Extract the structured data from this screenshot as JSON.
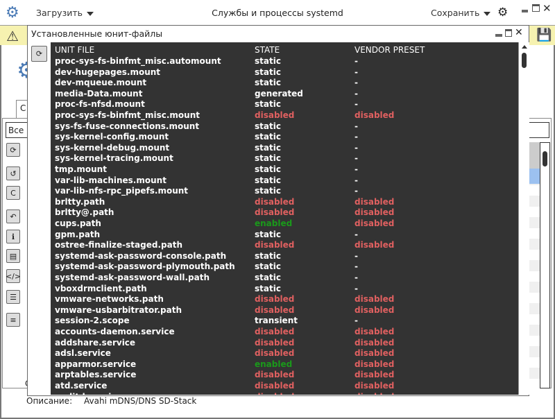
{
  "window": {
    "title": "Службы и процессы systemd",
    "load_menu": "Загрузить",
    "save_menu": "Сохранить"
  },
  "background": {
    "tab_label": "С",
    "filter_value": "Все",
    "description_label": "Описание:",
    "description_value": "Avahi mDNS/DNS SD-Stack",
    "partial_label": "С"
  },
  "dialog": {
    "title": "Установленные юнит-файлы",
    "columns": [
      "UNIT FILE",
      "STATE",
      "VENDOR PRESET"
    ],
    "rows": [
      [
        "proc-sys-fs-binfmt_misc.automount",
        "static",
        "-"
      ],
      [
        "dev-hugepages.mount",
        "static",
        "-"
      ],
      [
        "dev-mqueue.mount",
        "static",
        "-"
      ],
      [
        "media-Data.mount",
        "generated",
        "-"
      ],
      [
        "proc-fs-nfsd.mount",
        "static",
        "-"
      ],
      [
        "proc-sys-fs-binfmt_misc.mount",
        "disabled",
        "disabled"
      ],
      [
        "sys-fs-fuse-connections.mount",
        "static",
        "-"
      ],
      [
        "sys-kernel-config.mount",
        "static",
        "-"
      ],
      [
        "sys-kernel-debug.mount",
        "static",
        "-"
      ],
      [
        "sys-kernel-tracing.mount",
        "static",
        "-"
      ],
      [
        "tmp.mount",
        "static",
        "-"
      ],
      [
        "var-lib-machines.mount",
        "static",
        "-"
      ],
      [
        "var-lib-nfs-rpc_pipefs.mount",
        "static",
        "-"
      ],
      [
        "brltty.path",
        "disabled",
        "disabled"
      ],
      [
        "brltty@.path",
        "disabled",
        "disabled"
      ],
      [
        "cups.path",
        "enabled",
        "disabled"
      ],
      [
        "gpm.path",
        "static",
        "-"
      ],
      [
        "ostree-finalize-staged.path",
        "disabled",
        "disabled"
      ],
      [
        "systemd-ask-password-console.path",
        "static",
        "-"
      ],
      [
        "systemd-ask-password-plymouth.path",
        "static",
        "-"
      ],
      [
        "systemd-ask-password-wall.path",
        "static",
        "-"
      ],
      [
        "vboxdrmclient.path",
        "static",
        "-"
      ],
      [
        "vmware-networks.path",
        "disabled",
        "disabled"
      ],
      [
        "vmware-usbarbitrator.path",
        "disabled",
        "disabled"
      ],
      [
        "session-2.scope",
        "transient",
        "-"
      ],
      [
        "accounts-daemon.service",
        "disabled",
        "disabled"
      ],
      [
        "addshare.service",
        "disabled",
        "disabled"
      ],
      [
        "adsl.service",
        "disabled",
        "disabled"
      ],
      [
        "apparmor.service",
        "enabled",
        "disabled"
      ],
      [
        "arptables.service",
        "disabled",
        "disabled"
      ],
      [
        "atd.service",
        "disabled",
        "disabled"
      ],
      [
        "auditd.service",
        "disabled",
        "disabled"
      ]
    ]
  },
  "colors": {
    "disabled": "#e06060",
    "enabled": "#1a9a1a",
    "static": "#ffffff",
    "terminal_bg": "#333333",
    "warning_bar": "#f6f2b0",
    "accent": "#4a7ab5"
  }
}
